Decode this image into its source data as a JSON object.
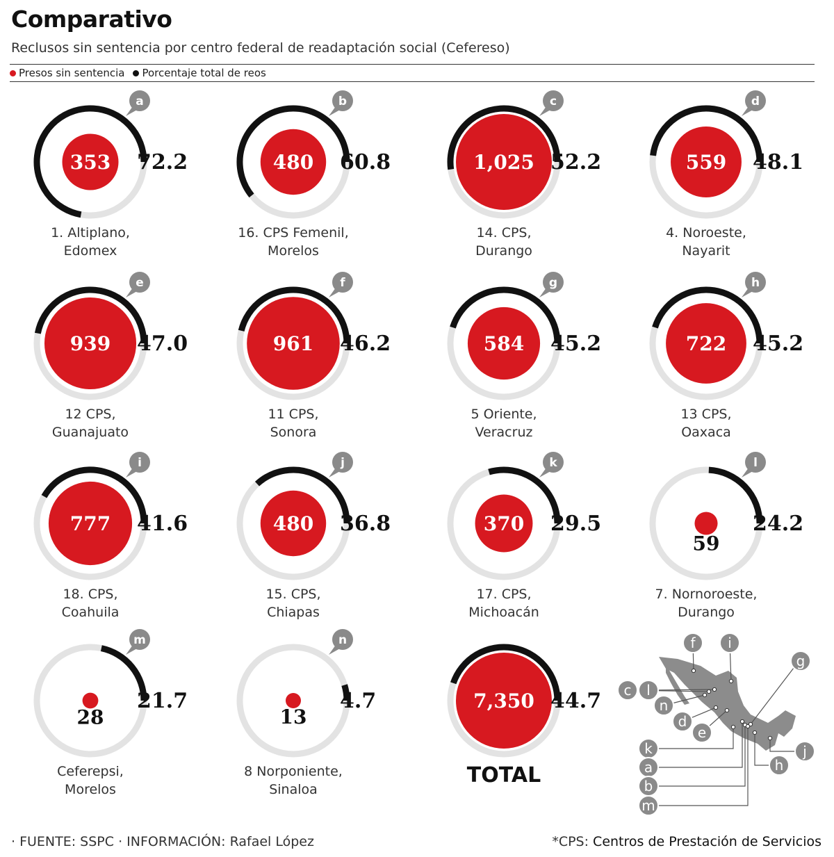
{
  "header": {
    "title": "Comparativo",
    "subtitle": "Reclusos sin sentencia por centro federal de readaptación social (Cefereso)"
  },
  "legend": {
    "items": [
      {
        "label": "Presos sin sentencia",
        "color": "#d71920"
      },
      {
        "label": "Porcentaje total de reos",
        "color": "#111111"
      }
    ]
  },
  "colors": {
    "red": "#d71920",
    "black": "#111111",
    "track": "#e3e3e3",
    "badge": "#8a8a8a",
    "map": "#8c8c8c"
  },
  "chart_data": {
    "type": "radial-bar",
    "series": [
      {
        "name": "Presos sin sentencia"
      },
      {
        "name": "Porcentaje total de reos"
      }
    ],
    "items": [
      {
        "letter": "a",
        "line1": "1. Altiplano,",
        "line2": "Edomex",
        "prisoners": 353,
        "prisoners_label": "353",
        "percent": 72.2,
        "percent_label": "72.2"
      },
      {
        "letter": "b",
        "line1": "16. CPS Femenil,",
        "line2": "Morelos",
        "prisoners": 480,
        "prisoners_label": "480",
        "percent": 60.8,
        "percent_label": "60.8"
      },
      {
        "letter": "c",
        "line1": "14. CPS,",
        "line2": "Durango",
        "prisoners": 1025,
        "prisoners_label": "1,025",
        "percent": 52.2,
        "percent_label": "52.2"
      },
      {
        "letter": "d",
        "line1": "4. Noroeste,",
        "line2": "Nayarit",
        "prisoners": 559,
        "prisoners_label": "559",
        "percent": 48.1,
        "percent_label": "48.1"
      },
      {
        "letter": "e",
        "line1": "12 CPS,",
        "line2": "Guanajuato",
        "prisoners": 939,
        "prisoners_label": "939",
        "percent": 47.0,
        "percent_label": "47.0"
      },
      {
        "letter": "f",
        "line1": "11 CPS,",
        "line2": "Sonora",
        "prisoners": 961,
        "prisoners_label": "961",
        "percent": 46.2,
        "percent_label": "46.2"
      },
      {
        "letter": "g",
        "line1": "5 Oriente,",
        "line2": "Veracruz",
        "prisoners": 584,
        "prisoners_label": "584",
        "percent": 45.2,
        "percent_label": "45.2"
      },
      {
        "letter": "h",
        "line1": "13 CPS,",
        "line2": "Oaxaca",
        "prisoners": 722,
        "prisoners_label": "722",
        "percent": 45.2,
        "percent_label": "45.2"
      },
      {
        "letter": "i",
        "line1": "18. CPS,",
        "line2": "Coahuila",
        "prisoners": 777,
        "prisoners_label": "777",
        "percent": 41.6,
        "percent_label": "41.6"
      },
      {
        "letter": "j",
        "line1": "15. CPS,",
        "line2": "Chiapas",
        "prisoners": 480,
        "prisoners_label": "480",
        "percent": 36.8,
        "percent_label": "36.8"
      },
      {
        "letter": "k",
        "line1": "17. CPS,",
        "line2": "Michoacán",
        "prisoners": 370,
        "prisoners_label": "370",
        "percent": 29.5,
        "percent_label": "29.5"
      },
      {
        "letter": "l",
        "line1": "7. Nornoroeste,",
        "line2": "Durango",
        "prisoners": 59,
        "prisoners_label": "59",
        "percent": 24.2,
        "percent_label": "24.2"
      },
      {
        "letter": "m",
        "line1": "Ceferepsi,",
        "line2": "Morelos",
        "prisoners": 28,
        "prisoners_label": "28",
        "percent": 21.7,
        "percent_label": "21.7"
      },
      {
        "letter": "n",
        "line1": "8 Norponiente,",
        "line2": "Sinaloa",
        "prisoners": 13,
        "prisoners_label": "13",
        "percent": 4.7,
        "percent_label": "4.7"
      }
    ],
    "total": {
      "label": "TOTAL",
      "prisoners": 7350,
      "prisoners_label": "7,350",
      "percent": 44.7,
      "percent_label": "44.7"
    }
  },
  "map": {
    "callouts": [
      "f",
      "i",
      "g",
      "c",
      "l",
      "n",
      "d",
      "e",
      "k",
      "a",
      "b",
      "m",
      "h",
      "j"
    ]
  },
  "footer": {
    "left": "· FUENTE: SSPC · INFORMACIÓN: Rafael López",
    "right_prefix": "*CPS:",
    "right_text": "Centros de Prestación de Servicios"
  }
}
